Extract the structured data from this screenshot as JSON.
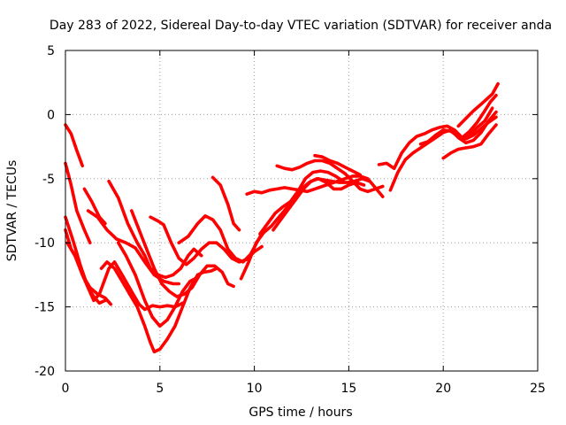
{
  "chart_data": {
    "type": "line",
    "title": "Day 283 of 2022, Sidereal Day-to-day VTEC variation (SDTVAR) for receiver anda",
    "xlabel": "GPS time / hours",
    "ylabel": "SDTVAR / TECUs",
    "xlim": [
      0,
      25
    ],
    "ylim": [
      -20,
      5
    ],
    "xticks": [
      0,
      5,
      10,
      15,
      20,
      25
    ],
    "xtick_labels": [
      "0",
      "5",
      "10",
      "15",
      "20",
      "25"
    ],
    "yticks": [
      5,
      0,
      -5,
      -10,
      -15,
      -20
    ],
    "ytick_labels": [
      "5",
      "0",
      "-5",
      "-10",
      "-15",
      "-20"
    ],
    "grid": true,
    "marker": "plus",
    "color": "#ff0000",
    "series": [
      {
        "name": "arc-1",
        "x": [
          0.0,
          0.3,
          0.6,
          0.9
        ],
        "y": [
          -0.8,
          -1.5,
          -2.8,
          -4.0
        ]
      },
      {
        "name": "arc-2",
        "x": [
          0.0,
          0.3,
          0.6,
          1.0,
          1.3
        ],
        "y": [
          -3.8,
          -5.5,
          -7.5,
          -9.0,
          -10.0
        ]
      },
      {
        "name": "arc-3",
        "x": [
          1.0,
          1.4,
          1.8,
          2.1
        ],
        "y": [
          -5.8,
          -6.8,
          -8.0,
          -8.5
        ]
      },
      {
        "name": "arc-4",
        "x": [
          0.0,
          0.4,
          0.8,
          1.2,
          1.5,
          1.8,
          2.3,
          2.6,
          3.0,
          3.5,
          3.9,
          4.2,
          4.6,
          5.0,
          5.4,
          5.8,
          6.2
        ],
        "y": [
          -8.0,
          -9.8,
          -11.8,
          -13.5,
          -14.5,
          -14.0,
          -12.0,
          -11.5,
          -12.5,
          -13.8,
          -14.8,
          -15.2,
          -14.9,
          -15.0,
          -14.9,
          -15.0,
          -14.7
        ]
      },
      {
        "name": "arc-5",
        "x": [
          0.0,
          0.3,
          0.6,
          0.9,
          1.2,
          1.5,
          1.8,
          2.1
        ],
        "y": [
          -9.0,
          -10.5,
          -11.2,
          -12.5,
          -13.5,
          -14.2,
          -14.7,
          -14.5
        ]
      },
      {
        "name": "arc-6",
        "x": [
          0.1,
          0.5,
          0.9,
          1.3,
          1.7,
          2.1,
          2.4
        ],
        "y": [
          -10.0,
          -11.0,
          -12.5,
          -13.5,
          -14.0,
          -14.3,
          -14.8
        ]
      },
      {
        "name": "arc-7",
        "x": [
          1.9,
          2.2,
          2.6,
          3.0,
          3.4,
          3.7
        ],
        "y": [
          -12.0,
          -11.5,
          -12.0,
          -13.0,
          -14.0,
          -14.5
        ]
      },
      {
        "name": "arc-8",
        "x": [
          2.3,
          2.8,
          3.3,
          3.8,
          4.2,
          4.5,
          4.9,
          5.3,
          5.7,
          6.1,
          6.5,
          6.8,
          7.2
        ],
        "y": [
          -5.2,
          -6.5,
          -8.5,
          -10.0,
          -11.0,
          -12.0,
          -12.5,
          -12.7,
          -12.5,
          -12.0,
          -11.0,
          -10.5,
          -11.0
        ]
      },
      {
        "name": "arc-9",
        "x": [
          1.2,
          1.7,
          2.2,
          2.7,
          3.2,
          3.7,
          4.2,
          4.7,
          5.2,
          5.7,
          6.0
        ],
        "y": [
          -7.5,
          -8.0,
          -9.0,
          -9.7,
          -10.0,
          -10.4,
          -11.5,
          -12.5,
          -13.0,
          -13.2,
          -13.2
        ]
      },
      {
        "name": "arc-10",
        "x": [
          2.8,
          3.2,
          3.7,
          4.2,
          4.6,
          5.0,
          5.4,
          5.8,
          6.2,
          6.6,
          7.0
        ],
        "y": [
          -10.0,
          -11.0,
          -12.5,
          -14.5,
          -15.8,
          -16.5,
          -16.0,
          -15.0,
          -13.8,
          -13.0,
          -12.7
        ]
      },
      {
        "name": "arc-11",
        "x": [
          3.4,
          3.8,
          4.2,
          4.5,
          4.7,
          5.0,
          5.4,
          5.8,
          6.2,
          6.6,
          7.0,
          7.3,
          7.7,
          8.0
        ],
        "y": [
          -14.0,
          -15.0,
          -16.5,
          -17.8,
          -18.5,
          -18.3,
          -17.5,
          -16.5,
          -15.0,
          -13.5,
          -12.5,
          -12.3,
          -12.2,
          -12.0
        ]
      },
      {
        "name": "arc-12",
        "x": [
          3.5,
          3.9,
          4.3,
          4.7,
          5.1,
          5.5,
          5.9,
          6.3,
          6.7,
          7.1,
          7.5,
          7.9,
          8.3,
          8.6,
          8.9
        ],
        "y": [
          -7.5,
          -9.0,
          -10.5,
          -12.0,
          -13.2,
          -13.8,
          -14.2,
          -14.0,
          -13.5,
          -12.5,
          -11.8,
          -11.8,
          -12.3,
          -13.2,
          -13.4
        ]
      },
      {
        "name": "arc-13",
        "x": [
          4.5,
          4.9,
          5.2,
          5.6,
          6.0,
          6.4,
          6.8,
          7.2,
          7.6,
          8.0,
          8.4,
          8.8,
          9.2,
          9.6,
          10.0,
          10.4
        ],
        "y": [
          -8.0,
          -8.3,
          -8.6,
          -10.0,
          -11.2,
          -11.7,
          -11.2,
          -10.5,
          -10.0,
          -10.0,
          -10.5,
          -11.2,
          -11.5,
          -11.3,
          -10.7,
          -10.3
        ]
      },
      {
        "name": "arc-14",
        "x": [
          6.0,
          6.5,
          7.0,
          7.4,
          7.8,
          8.2,
          8.6,
          9.0,
          9.4,
          9.8,
          10.2,
          10.6
        ],
        "y": [
          -10.0,
          -9.5,
          -8.5,
          -7.9,
          -8.2,
          -9.0,
          -10.5,
          -11.2,
          -11.5,
          -10.9,
          -9.8,
          -8.7
        ]
      },
      {
        "name": "arc-15",
        "x": [
          7.8,
          8.2,
          8.6,
          8.9,
          9.2
        ],
        "y": [
          -4.9,
          -5.5,
          -7.0,
          -8.5,
          -9.0
        ]
      },
      {
        "name": "arc-16",
        "x": [
          9.3,
          9.7,
          10.1,
          10.5,
          10.9,
          11.3,
          11.7,
          12.1,
          12.5,
          12.9,
          13.3,
          13.7,
          14.1,
          14.5,
          14.9,
          15.3,
          15.7,
          16.1
        ],
        "y": [
          -12.8,
          -11.5,
          -10.0,
          -9.2,
          -8.7,
          -8.0,
          -7.3,
          -6.5,
          -5.8,
          -5.3,
          -5.0,
          -5.1,
          -5.2,
          -5.3,
          -5.3,
          -5.2,
          -5.0,
          -5.2
        ]
      },
      {
        "name": "arc-17",
        "x": [
          9.6,
          10.0,
          10.4,
          10.8,
          11.2,
          11.6,
          12.0,
          12.4,
          12.8,
          13.2,
          13.6,
          14.0,
          14.4,
          14.8,
          15.2,
          15.6,
          16.0,
          16.4,
          16.8
        ],
        "y": [
          -6.2,
          -6.0,
          -6.1,
          -5.9,
          -5.8,
          -5.7,
          -5.8,
          -5.9,
          -6.0,
          -5.8,
          -5.6,
          -5.4,
          -5.2,
          -5.0,
          -4.8,
          -4.8,
          -5.0,
          -5.7,
          -6.4
        ]
      },
      {
        "name": "arc-18",
        "x": [
          10.3,
          10.7,
          11.1,
          11.5,
          11.9,
          12.3,
          12.7,
          13.1,
          13.5,
          13.9,
          14.3,
          14.7
        ],
        "y": [
          -9.3,
          -8.5,
          -7.7,
          -7.2,
          -6.8,
          -6.0,
          -5.0,
          -4.5,
          -4.4,
          -4.5,
          -4.8,
          -5.2
        ]
      },
      {
        "name": "arc-19",
        "x": [
          11.2,
          11.6,
          12.0,
          12.4,
          12.8,
          13.2,
          13.6,
          14.0,
          14.4,
          14.8,
          15.2,
          15.6,
          16.0,
          16.4,
          16.8
        ],
        "y": [
          -4.0,
          -4.2,
          -4.3,
          -4.1,
          -3.8,
          -3.6,
          -3.6,
          -3.8,
          -4.2,
          -4.6,
          -5.2,
          -5.8,
          -6.0,
          -5.8,
          -5.6
        ]
      },
      {
        "name": "arc-20",
        "x": [
          11.0,
          11.4,
          11.8,
          12.2,
          12.6,
          13.0,
          13.4,
          13.8,
          14.2,
          14.6,
          15.0,
          15.4,
          15.8
        ],
        "y": [
          -9.0,
          -8.2,
          -7.4,
          -6.6,
          -5.8,
          -5.2,
          -5.0,
          -5.3,
          -5.8,
          -5.8,
          -5.5,
          -5.3,
          -5.5
        ]
      },
      {
        "name": "arc-21",
        "x": [
          13.2,
          13.6,
          14.0,
          14.4,
          14.8,
          15.2,
          15.6
        ],
        "y": [
          -3.2,
          -3.3,
          -3.6,
          -3.8,
          -4.1,
          -4.4,
          -4.7
        ]
      },
      {
        "name": "arc-22",
        "x": [
          16.6,
          17.0,
          17.4,
          17.8,
          18.2,
          18.6,
          19.0,
          19.4,
          19.8,
          20.2,
          20.6,
          21.0,
          21.4,
          21.8,
          22.2,
          22.6
        ],
        "y": [
          -3.9,
          -3.8,
          -4.2,
          -3.0,
          -2.2,
          -1.7,
          -1.5,
          -1.2,
          -1.0,
          -0.9,
          -1.2,
          -1.8,
          -1.6,
          -1.0,
          -0.5,
          0.5
        ]
      },
      {
        "name": "arc-23",
        "x": [
          17.2,
          17.6,
          18.0,
          18.4,
          18.8,
          19.2,
          19.6,
          20.0,
          20.4,
          20.8,
          21.2,
          21.6,
          22.0,
          22.4,
          22.8
        ],
        "y": [
          -5.9,
          -4.5,
          -3.5,
          -3.0,
          -2.6,
          -2.2,
          -1.8,
          -1.4,
          -1.2,
          -1.8,
          -2.2,
          -2.0,
          -1.4,
          -0.5,
          0.2
        ]
      },
      {
        "name": "arc-24",
        "x": [
          18.8,
          19.2,
          19.6,
          20.0,
          20.4,
          20.8,
          21.2,
          21.6,
          22.0,
          22.4,
          22.8
        ],
        "y": [
          -2.3,
          -2.1,
          -1.6,
          -1.2,
          -1.3,
          -1.7,
          -1.9,
          -1.6,
          -1.1,
          -0.6,
          -0.2
        ]
      },
      {
        "name": "arc-25",
        "x": [
          20.0,
          20.4,
          20.8,
          21.2,
          21.6,
          22.0,
          22.4,
          22.8
        ],
        "y": [
          -3.4,
          -3.0,
          -2.7,
          -2.6,
          -2.5,
          -2.3,
          -1.5,
          -0.8
        ]
      },
      {
        "name": "arc-26",
        "x": [
          20.8,
          21.2,
          21.6,
          22.0,
          22.3,
          22.6,
          22.9
        ],
        "y": [
          -0.9,
          -0.3,
          0.3,
          0.8,
          1.2,
          1.6,
          2.4
        ]
      },
      {
        "name": "arc-27",
        "x": [
          21.0,
          21.4,
          21.8,
          22.2,
          22.5,
          22.8
        ],
        "y": [
          -1.8,
          -1.3,
          -0.6,
          0.3,
          1.0,
          1.5
        ]
      }
    ]
  }
}
